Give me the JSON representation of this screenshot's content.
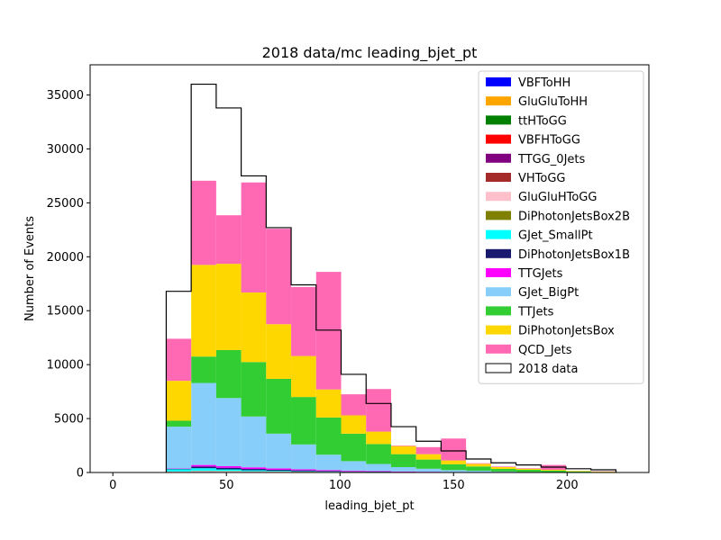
{
  "chart_data": {
    "type": "bar",
    "title": "2018 data/mc leading_bjet_pt",
    "xlabel": "leading_bjet_pt",
    "ylabel": "Number of Events",
    "xlim": [
      -10,
      236
    ],
    "ylim": [
      0,
      37800
    ],
    "x_ticks": [
      0,
      50,
      100,
      150,
      200
    ],
    "y_ticks": [
      0,
      5000,
      10000,
      15000,
      20000,
      25000,
      30000,
      35000
    ],
    "legend_position": "top-right",
    "bin_edges": [
      23.5,
      34.5,
      45.5,
      56.5,
      67.5,
      78.5,
      89.5,
      100.5,
      111.5,
      122.5,
      133.5,
      144.5,
      155.5,
      166.5,
      177.5,
      188.5,
      199.5,
      210.5,
      221.5
    ],
    "series": [
      {
        "name": "VBFToHH",
        "color": "#0000ff",
        "values": [
          0,
          0,
          0,
          0,
          0,
          0,
          0,
          0,
          0,
          0,
          0,
          0,
          0,
          0,
          0,
          0,
          0,
          0
        ]
      },
      {
        "name": "GluGluToHH",
        "color": "#ffa500",
        "values": [
          0,
          0,
          0,
          0,
          0,
          0,
          0,
          0,
          0,
          0,
          0,
          0,
          0,
          0,
          0,
          0,
          0,
          0
        ]
      },
      {
        "name": "ttHToGG",
        "color": "#008000",
        "values": [
          0,
          0,
          0,
          0,
          0,
          0,
          0,
          0,
          0,
          0,
          0,
          0,
          0,
          0,
          0,
          0,
          0,
          0
        ]
      },
      {
        "name": "VBFHToGG",
        "color": "#ff0000",
        "values": [
          0,
          0,
          0,
          0,
          0,
          0,
          0,
          0,
          0,
          0,
          0,
          0,
          0,
          0,
          0,
          0,
          0,
          0
        ]
      },
      {
        "name": "TTGG_0Jets",
        "color": "#800080",
        "values": [
          30,
          60,
          50,
          40,
          40,
          30,
          20,
          20,
          10,
          10,
          10,
          10,
          0,
          0,
          0,
          0,
          0,
          0
        ]
      },
      {
        "name": "VHToGG",
        "color": "#a52a2a",
        "values": [
          0,
          0,
          0,
          0,
          0,
          0,
          0,
          0,
          0,
          0,
          0,
          0,
          0,
          0,
          0,
          0,
          0,
          0
        ]
      },
      {
        "name": "GluGluHToGG",
        "color": "#ffc0cb",
        "values": [
          50,
          60,
          60,
          50,
          40,
          30,
          30,
          20,
          20,
          10,
          10,
          10,
          10,
          0,
          0,
          0,
          0,
          0
        ]
      },
      {
        "name": "DiPhotonJetsBox2B",
        "color": "#808000",
        "values": [
          20,
          30,
          30,
          20,
          20,
          20,
          10,
          10,
          10,
          10,
          0,
          0,
          0,
          0,
          0,
          0,
          0,
          0
        ]
      },
      {
        "name": "GJet_SmallPt",
        "color": "#00ffff",
        "values": [
          200,
          250,
          150,
          100,
          60,
          40,
          20,
          10,
          10,
          0,
          0,
          0,
          0,
          0,
          0,
          0,
          0,
          0
        ]
      },
      {
        "name": "DiPhotonJetsBox1B",
        "color": "#191970",
        "values": [
          50,
          150,
          150,
          120,
          100,
          80,
          60,
          40,
          30,
          20,
          20,
          10,
          10,
          10,
          0,
          0,
          0,
          0
        ]
      },
      {
        "name": "TTGJets",
        "color": "#ff00ff",
        "values": [
          30,
          150,
          150,
          150,
          120,
          100,
          80,
          60,
          50,
          40,
          30,
          20,
          20,
          10,
          10,
          0,
          0,
          0
        ]
      },
      {
        "name": "GJet_BigPt",
        "color": "#87cefa",
        "values": [
          3870,
          7600,
          6310,
          4710,
          3220,
          2300,
          1430,
          890,
          660,
          410,
          280,
          170,
          120,
          70,
          40,
          30,
          20,
          10
        ]
      },
      {
        "name": "TTJets",
        "color": "#32cd32",
        "values": [
          550,
          2450,
          4450,
          5050,
          5080,
          4400,
          3450,
          2550,
          1850,
          1200,
          850,
          550,
          400,
          250,
          200,
          150,
          80,
          40
        ]
      },
      {
        "name": "DiPhotonJetsBox",
        "color": "#ffd700",
        "values": [
          3700,
          8500,
          8000,
          6450,
          5070,
          3800,
          2600,
          1700,
          1150,
          750,
          500,
          350,
          250,
          170,
          100,
          70,
          50,
          40
        ]
      },
      {
        "name": "QCD_Jets",
        "color": "#ff69b4",
        "values": [
          3900,
          7800,
          4500,
          10200,
          8850,
          6400,
          10900,
          1950,
          3950,
          50,
          650,
          2030,
          50,
          50,
          50,
          450,
          0,
          20
        ]
      }
    ],
    "data_series": {
      "name": "2018 data",
      "color": "#000000",
      "values": [
        16800,
        36000,
        33800,
        27500,
        22700,
        17400,
        13200,
        9100,
        6400,
        4250,
        2900,
        2000,
        1250,
        900,
        700,
        500,
        350,
        250
      ]
    }
  }
}
